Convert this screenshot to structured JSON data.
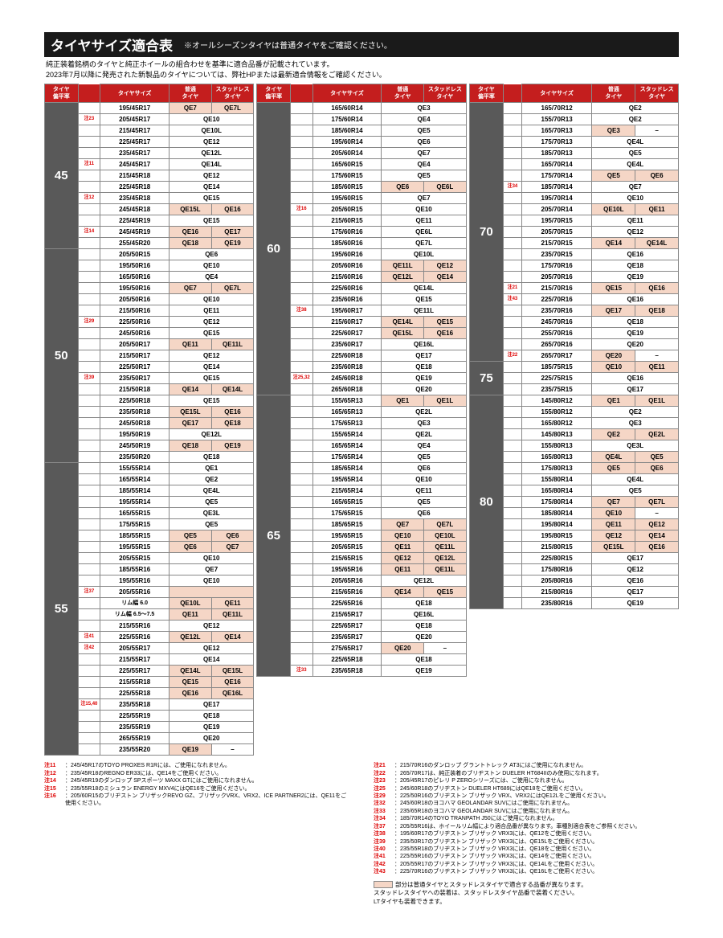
{
  "title": "タイヤサイズ適合表",
  "subtitle": "※オールシーズンタイヤは普通タイヤをご確認ください。",
  "desc": [
    "純正装着銘柄のタイヤと純正ホイールの組合わせを基準に適合品番が記載されています。",
    "2023年7月以降に発売された新製品のタイヤについては、弊社HPまたは最新適合情報をご確認ください。"
  ],
  "headers": [
    "タイヤ\n偏平率",
    "",
    "タイヤサイズ",
    "普通\nタイヤ",
    "スタッドレス\nタイヤ"
  ],
  "legend": "部分は普通タイヤとスタッドレスタイヤで適合する品番が異なります。\nスタッドレスタイヤへの装着は、スタッドレスタイヤ品番で装着ください。\nLTタイヤも装着できます。",
  "notes_left": [
    [
      "注11",
      "：245/45R17のTOYO PROXES R1Rには、ご使用になれません。"
    ],
    [
      "注12",
      "：235/45R18のREGNO ER33には、QE14をご使用ください。"
    ],
    [
      "注14",
      "：245/45R19のダンロップ SPスポーツ MAXX GTにはご使用になれません。"
    ],
    [
      "注15",
      "：235/55R18のミシュラン ENERGY MXV4にはQE16をご使用ください。"
    ],
    [
      "注16",
      "：205/60R15のブリヂストン ブリザックREVO GZ、ブリザックVRX、VRX2、ICE PARTNER2には、QE11をご使用ください。"
    ]
  ],
  "notes_right": [
    [
      "注21",
      "：215/70R16のダンロップ グラントトレック AT3にはご使用になれません。"
    ],
    [
      "注22",
      "：265/70R17は、純正装着のブリヂストン DUELER HT684IIのみ使用になれます。"
    ],
    [
      "注23",
      "：205/45R17のピレリ P ZEROシリーズには、ご使用になれません。"
    ],
    [
      "注25",
      "：245/60R18のブリヂストン DUELER HT689にはQE18をご使用ください。"
    ],
    [
      "注29",
      "：225/50R16のブリヂストン ブリザック VRX、VRX2にはQE12Lをご使用ください。"
    ],
    [
      "注32",
      "：245/60R18のヨコハマ GEOLANDAR SUVにはご使用になれません。"
    ],
    [
      "注33",
      "：235/65R18のヨコハマ GEOLANDAR SUVにはご使用になれません。"
    ],
    [
      "注34",
      "：185/70R14のTOYO TRANPATH J50にはご使用になれません。"
    ],
    [
      "注37",
      "：205/55R16は、ホイールリム幅により適合品番が異なります。車種別適合表をご参照ください。"
    ],
    [
      "注38",
      "：195/60R17のブリヂストン ブリザック VRX3には、QE12をご使用ください。"
    ],
    [
      "注39",
      "：235/50R17のブリヂストン ブリザック VRX3には、QE15Lをご使用ください。"
    ],
    [
      "注40",
      "：235/55R18のブリヂストン ブリザック VRX3には、QE18をご使用ください。"
    ],
    [
      "注41",
      "：225/55R16のブリヂストン ブリザック VRX3には、QE14をご使用ください。"
    ],
    [
      "注42",
      "：205/55R17のブリヂストン ブリザック VRX3には、QE14Lをご使用ください。"
    ],
    [
      "注43",
      "：225/70R16のブリヂストン ブリザック VRX3には、QE16Lをご使用ください。"
    ]
  ],
  "cols": [
    [
      {
        "aspect": "45",
        "rows": [
          [
            "",
            "195/45R17",
            "QE7",
            "QE7L",
            1,
            1
          ],
          [
            "注23",
            "205/45R17",
            "QE10",
            ""
          ],
          [
            "",
            "215/45R17",
            "QE10L",
            ""
          ],
          [
            "",
            "225/45R17",
            "QE12",
            ""
          ],
          [
            "",
            "235/45R17",
            "QE12L",
            ""
          ],
          [
            "注11",
            "245/45R17",
            "QE14L",
            ""
          ],
          [
            "",
            "215/45R18",
            "QE12",
            ""
          ],
          [
            "",
            "225/45R18",
            "QE14",
            ""
          ],
          [
            "注12",
            "235/45R18",
            "QE15",
            ""
          ],
          [
            "",
            "245/45R18",
            "QE15L",
            "QE16",
            1,
            1
          ],
          [
            "",
            "225/45R19",
            "QE15",
            ""
          ],
          [
            "注14",
            "245/45R19",
            "QE16",
            "QE17",
            1,
            1
          ],
          [
            "",
            "255/45R20",
            "QE18",
            "QE19",
            1,
            1
          ]
        ]
      },
      {
        "aspect": "50",
        "rows": [
          [
            "",
            "205/50R15",
            "QE6",
            ""
          ],
          [
            "",
            "195/50R16",
            "QE10",
            ""
          ],
          [
            "",
            "165/50R16",
            "QE4",
            ""
          ],
          [
            "",
            "195/50R16",
            "QE7",
            "QE7L",
            1,
            1
          ],
          [
            "",
            "205/50R16",
            "QE10",
            ""
          ],
          [
            "",
            "215/50R16",
            "QE11",
            ""
          ],
          [
            "注29",
            "225/50R16",
            "QE12",
            ""
          ],
          [
            "",
            "245/50R16",
            "QE15",
            ""
          ],
          [
            "",
            "205/50R17",
            "QE11",
            "QE11L",
            1,
            1
          ],
          [
            "",
            "215/50R17",
            "QE12",
            ""
          ],
          [
            "",
            "225/50R17",
            "QE14",
            ""
          ],
          [
            "注39",
            "235/50R17",
            "QE15",
            ""
          ],
          [
            "",
            "215/50R18",
            "QE14",
            "QE14L",
            1,
            1
          ],
          [
            "",
            "225/50R18",
            "QE15",
            ""
          ],
          [
            "",
            "235/50R18",
            "QE15L",
            "QE16",
            1,
            1
          ],
          [
            "",
            "245/50R18",
            "QE17",
            "QE18",
            1,
            1
          ],
          [
            "",
            "195/50R19",
            "QE12L",
            ""
          ],
          [
            "",
            "245/50R19",
            "QE18",
            "QE19",
            1,
            1
          ],
          [
            "",
            "235/50R20",
            "QE18",
            ""
          ]
        ]
      },
      {
        "aspect": "55",
        "rows": [
          [
            "",
            "155/55R14",
            "QE1",
            ""
          ],
          [
            "",
            "165/55R14",
            "QE2",
            ""
          ],
          [
            "",
            "185/55R14",
            "QE4L",
            ""
          ],
          [
            "",
            "195/55R14",
            "QE5",
            ""
          ],
          [
            "",
            "165/55R15",
            "QE3L",
            ""
          ],
          [
            "",
            "175/55R15",
            "QE5",
            ""
          ],
          [
            "",
            "185/55R15",
            "QE5",
            "QE6",
            1,
            1
          ],
          [
            "",
            "195/55R15",
            "QE6",
            "QE7",
            1,
            1
          ],
          [
            "",
            "205/55R15",
            "QE10",
            ""
          ],
          [
            "",
            "185/55R16",
            "QE7",
            ""
          ],
          [
            "",
            "195/55R16",
            "QE10",
            ""
          ],
          [
            "注37",
            "205/55R16",
            "",
            "",
            1,
            0,
            "rim"
          ],
          [
            "",
            "",
            "QE10L",
            "QE11",
            1,
            1,
            "rim60"
          ],
          [
            "",
            "",
            "QE11",
            "QE11L",
            1,
            1,
            "rim65"
          ],
          [
            "",
            "215/55R16",
            "QE12",
            ""
          ],
          [
            "注41",
            "225/55R16",
            "QE12L",
            "QE14",
            1,
            1
          ],
          [
            "注42",
            "205/55R17",
            "QE12",
            ""
          ],
          [
            "",
            "215/55R17",
            "QE14",
            ""
          ],
          [
            "",
            "225/55R17",
            "QE14L",
            "QE15L",
            1,
            1
          ],
          [
            "",
            "215/55R18",
            "QE15",
            "QE16",
            1,
            1
          ],
          [
            "",
            "225/55R18",
            "QE16",
            "QE16L",
            1,
            1
          ],
          [
            "注15,40",
            "235/55R18",
            "QE17",
            ""
          ],
          [
            "",
            "225/55R19",
            "QE18",
            ""
          ],
          [
            "",
            "235/55R19",
            "QE19",
            ""
          ],
          [
            "",
            "265/55R19",
            "QE20",
            ""
          ],
          [
            "",
            "235/55R20",
            "QE19",
            "–",
            1,
            0
          ]
        ]
      }
    ],
    [
      {
        "aspect": "60",
        "rows": [
          [
            "",
            "165/60R14",
            "QE3",
            ""
          ],
          [
            "",
            "175/60R14",
            "QE4",
            ""
          ],
          [
            "",
            "185/60R14",
            "QE5",
            ""
          ],
          [
            "",
            "195/60R14",
            "QE6",
            ""
          ],
          [
            "",
            "205/60R14",
            "QE7",
            ""
          ],
          [
            "",
            "165/60R15",
            "QE4",
            ""
          ],
          [
            "",
            "175/60R15",
            "QE5",
            ""
          ],
          [
            "",
            "185/60R15",
            "QE6",
            "QE6L",
            1,
            1
          ],
          [
            "",
            "195/60R15",
            "QE7",
            ""
          ],
          [
            "注16",
            "205/60R15",
            "QE10",
            ""
          ],
          [
            "",
            "215/60R15",
            "QE11",
            ""
          ],
          [
            "",
            "175/60R16",
            "QE6L",
            ""
          ],
          [
            "",
            "185/60R16",
            "QE7L",
            ""
          ],
          [
            "",
            "195/60R16",
            "QE10L",
            ""
          ],
          [
            "",
            "205/60R16",
            "QE11L",
            "QE12",
            1,
            1
          ],
          [
            "",
            "215/60R16",
            "QE12L",
            "QE14",
            1,
            1
          ],
          [
            "",
            "225/60R16",
            "QE14L",
            ""
          ],
          [
            "",
            "235/60R16",
            "QE15",
            ""
          ],
          [
            "注38",
            "195/60R17",
            "QE11L",
            ""
          ],
          [
            "",
            "215/60R17",
            "QE14L",
            "QE15",
            1,
            1
          ],
          [
            "",
            "225/60R17",
            "QE15L",
            "QE16",
            1,
            1
          ],
          [
            "",
            "235/60R17",
            "QE16L",
            ""
          ],
          [
            "",
            "225/60R18",
            "QE17",
            ""
          ],
          [
            "",
            "235/60R18",
            "QE18",
            ""
          ],
          [
            "注25,32",
            "245/60R18",
            "QE19",
            ""
          ],
          [
            "",
            "265/60R18",
            "QE20",
            ""
          ]
        ]
      },
      {
        "aspect": "65",
        "rows": [
          [
            "",
            "155/65R13",
            "QE1",
            "QE1L",
            1,
            1
          ],
          [
            "",
            "165/65R13",
            "QE2L",
            ""
          ],
          [
            "",
            "175/65R13",
            "QE3",
            ""
          ],
          [
            "",
            "155/65R14",
            "QE2L",
            ""
          ],
          [
            "",
            "165/65R14",
            "QE4",
            ""
          ],
          [
            "",
            "175/65R14",
            "QE5",
            ""
          ],
          [
            "",
            "185/65R14",
            "QE6",
            ""
          ],
          [
            "",
            "195/65R14",
            "QE10",
            ""
          ],
          [
            "",
            "215/65R14",
            "QE11",
            ""
          ],
          [
            "",
            "165/65R15",
            "QE5",
            ""
          ],
          [
            "",
            "175/65R15",
            "QE6",
            ""
          ],
          [
            "",
            "185/65R15",
            "QE7",
            "QE7L",
            1,
            1
          ],
          [
            "",
            "195/65R15",
            "QE10",
            "QE10L",
            1,
            1
          ],
          [
            "",
            "205/65R15",
            "QE11",
            "QE11L",
            1,
            1
          ],
          [
            "",
            "215/65R15",
            "QE12",
            "QE12L",
            1,
            1
          ],
          [
            "",
            "195/65R16",
            "QE11",
            "QE11L",
            1,
            1
          ],
          [
            "",
            "205/65R16",
            "QE12L",
            ""
          ],
          [
            "",
            "215/65R16",
            "QE14",
            "QE15",
            1,
            1
          ],
          [
            "",
            "225/65R16",
            "QE18",
            ""
          ],
          [
            "",
            "215/65R17",
            "QE16L",
            ""
          ],
          [
            "",
            "225/65R17",
            "QE18",
            ""
          ],
          [
            "",
            "235/65R17",
            "QE20",
            ""
          ],
          [
            "",
            "275/65R17",
            "QE20",
            "–",
            1,
            0
          ],
          [
            "",
            "225/65R18",
            "QE18",
            ""
          ],
          [
            "注33",
            "235/65R18",
            "QE19",
            ""
          ]
        ]
      }
    ],
    [
      {
        "aspect": "70",
        "rows": [
          [
            "",
            "165/70R12",
            "QE2",
            ""
          ],
          [
            "",
            "155/70R13",
            "QE2",
            ""
          ],
          [
            "",
            "165/70R13",
            "QE3",
            "–",
            1,
            0
          ],
          [
            "",
            "175/70R13",
            "QE4L",
            ""
          ],
          [
            "",
            "185/70R13",
            "QE5",
            ""
          ],
          [
            "",
            "165/70R14",
            "QE4L",
            ""
          ],
          [
            "",
            "175/70R14",
            "QE5",
            "QE6",
            1,
            1
          ],
          [
            "注34",
            "185/70R14",
            "QE7",
            ""
          ],
          [
            "",
            "195/70R14",
            "QE10",
            ""
          ],
          [
            "",
            "205/70R14",
            "QE10L",
            "QE11",
            1,
            1
          ],
          [
            "",
            "195/70R15",
            "QE11",
            ""
          ],
          [
            "",
            "205/70R15",
            "QE12",
            ""
          ],
          [
            "",
            "215/70R15",
            "QE14",
            "QE14L",
            1,
            1
          ],
          [
            "",
            "235/70R15",
            "QE16",
            ""
          ],
          [
            "",
            "175/70R16",
            "QE18",
            ""
          ],
          [
            "",
            "205/70R16",
            "QE19",
            ""
          ],
          [
            "注21",
            "215/70R16",
            "QE15",
            "QE16",
            1,
            1
          ],
          [
            "注43",
            "225/70R16",
            "QE16",
            ""
          ],
          [
            "",
            "235/70R16",
            "QE17",
            "QE18",
            1,
            1
          ],
          [
            "",
            "245/70R16",
            "QE18",
            ""
          ],
          [
            "",
            "255/70R16",
            "QE19",
            ""
          ],
          [
            "",
            "265/70R16",
            "QE20",
            ""
          ],
          [
            "注22",
            "265/70R17",
            "QE20",
            "–",
            1,
            0
          ]
        ]
      },
      {
        "aspect": "75",
        "rows": [
          [
            "",
            "185/75R15",
            "QE10",
            "QE11",
            1,
            1
          ],
          [
            "",
            "225/75R15",
            "QE16",
            ""
          ],
          [
            "",
            "235/75R15",
            "QE17",
            ""
          ]
        ]
      },
      {
        "aspect": "80",
        "rows": [
          [
            "",
            "145/80R12",
            "QE1",
            "QE1L",
            1,
            1
          ],
          [
            "",
            "155/80R12",
            "QE2",
            ""
          ],
          [
            "",
            "165/80R12",
            "QE3",
            ""
          ],
          [
            "",
            "145/80R13",
            "QE2",
            "QE2L",
            1,
            1
          ],
          [
            "",
            "155/80R13",
            "QE3L",
            ""
          ],
          [
            "",
            "165/80R13",
            "QE4L",
            "QE5",
            1,
            1
          ],
          [
            "",
            "175/80R13",
            "QE5",
            "QE6",
            1,
            1
          ],
          [
            "",
            "155/80R14",
            "QE4L",
            ""
          ],
          [
            "",
            "165/80R14",
            "QE5",
            ""
          ],
          [
            "",
            "175/80R14",
            "QE7",
            "QE7L",
            1,
            1
          ],
          [
            "",
            "185/80R14",
            "QE10",
            "–",
            1,
            0
          ],
          [
            "",
            "195/80R14",
            "QE11",
            "QE12",
            1,
            1
          ],
          [
            "",
            "195/80R15",
            "QE12",
            "QE14",
            1,
            1
          ],
          [
            "",
            "215/80R15",
            "QE15L",
            "QE16",
            1,
            1
          ],
          [
            "",
            "225/80R15",
            "QE17",
            ""
          ],
          [
            "",
            "175/80R16",
            "QE12",
            ""
          ],
          [
            "",
            "205/80R16",
            "QE16",
            ""
          ],
          [
            "",
            "215/80R16",
            "QE17",
            ""
          ],
          [
            "",
            "235/80R16",
            "QE19",
            ""
          ]
        ]
      }
    ]
  ]
}
